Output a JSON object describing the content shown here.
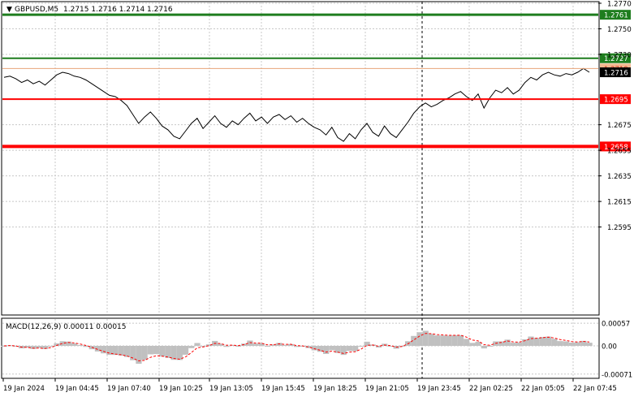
{
  "header": {
    "symbol_label": "GBPUSD,M5",
    "ohlc": "1.2715 1.2716 1.2714 1.2716"
  },
  "price_axis": {
    "ticks": [
      "1.2770",
      "1.2750",
      "1.2730",
      "1.2675",
      "1.2655",
      "1.2635",
      "1.2615",
      "1.2595"
    ],
    "tick_values": [
      1.277,
      1.275,
      1.273,
      1.2675,
      1.2655,
      1.2635,
      1.2615,
      1.2595
    ]
  },
  "levels": [
    {
      "label": "1.2761",
      "value": 1.2761,
      "color": "#1e7d1e",
      "kind": "resistance"
    },
    {
      "label": "1.2727",
      "value": 1.2727,
      "color": "#1e7d1e",
      "kind": "resistance"
    },
    {
      "label": "1.2719",
      "value": 1.2719,
      "color": "#e8a47a",
      "kind": "ask"
    },
    {
      "label": "1.2716",
      "value": 1.2716,
      "color": "#000000",
      "kind": "current"
    },
    {
      "label": "1.2695",
      "value": 1.2695,
      "color": "#ff0000",
      "kind": "support"
    },
    {
      "label": "1.2658",
      "value": 1.2658,
      "color": "#ff0000",
      "kind": "support"
    }
  ],
  "time_axis": {
    "labels": [
      "19 Jan 2024",
      "19 Jan 04:45",
      "19 Jan 07:40",
      "19 Jan 10:25",
      "19 Jan 13:05",
      "19 Jan 15:45",
      "19 Jan 18:25",
      "19 Jan 21:05",
      "19 Jan 23:45",
      "22 Jan 02:25",
      "22 Jan 05:05",
      "22 Jan 07:45"
    ]
  },
  "macd": {
    "label": "MACD(12,26,9) 0.00011 0.00015",
    "ticks": [
      "0.00057",
      "0.00",
      "-0.00071"
    ],
    "tick_values": [
      0.00057,
      0.0,
      -0.00071
    ]
  },
  "chart_data": {
    "type": "line",
    "title": "GBPUSD,M5",
    "ylim": [
      1.259,
      1.2772
    ],
    "close_series": [
      1.2712,
      1.2713,
      1.2711,
      1.2708,
      1.271,
      1.2707,
      1.2709,
      1.2706,
      1.271,
      1.2714,
      1.2716,
      1.2715,
      1.2713,
      1.2712,
      1.271,
      1.2707,
      1.2704,
      1.2701,
      1.2698,
      1.2697,
      1.2694,
      1.269,
      1.2683,
      1.2676,
      1.2681,
      1.2685,
      1.268,
      1.2674,
      1.2671,
      1.2666,
      1.2664,
      1.267,
      1.2676,
      1.268,
      1.2672,
      1.2677,
      1.2682,
      1.2676,
      1.2673,
      1.2678,
      1.2675,
      1.268,
      1.2684,
      1.2678,
      1.2681,
      1.2676,
      1.2681,
      1.2683,
      1.2679,
      1.2682,
      1.2677,
      1.268,
      1.2676,
      1.2673,
      1.2671,
      1.2667,
      1.2673,
      1.2665,
      1.2662,
      1.2668,
      1.2664,
      1.2671,
      1.2676,
      1.2669,
      1.2666,
      1.2674,
      1.2668,
      1.2665,
      1.2671,
      1.2677,
      1.2684,
      1.2689,
      1.2692,
      1.2689,
      1.2691,
      1.2694,
      1.2696,
      1.2699,
      1.2701,
      1.2697,
      1.2694,
      1.2699,
      1.2688,
      1.2696,
      1.2702,
      1.27,
      1.2704,
      1.2699,
      1.2702,
      1.2708,
      1.2712,
      1.271,
      1.2714,
      1.2716,
      1.2714,
      1.2713,
      1.2715,
      1.2714,
      1.2716,
      1.2719,
      1.2716
    ]
  }
}
